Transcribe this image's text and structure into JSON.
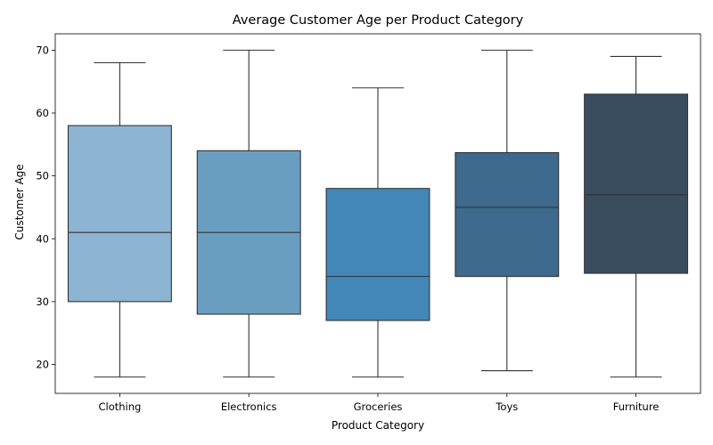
{
  "chart_data": {
    "type": "box",
    "title": "Average Customer Age per Product Category",
    "xlabel": "Product Category",
    "ylabel": "Customer Age",
    "ylim": [
      15.4,
      72.6
    ],
    "yticks": [
      20,
      30,
      40,
      50,
      60,
      70
    ],
    "grid": false,
    "categories": [
      "Clothing",
      "Electronics",
      "Groceries",
      "Toys",
      "Furniture"
    ],
    "boxes": [
      {
        "category": "Clothing",
        "min": 18,
        "q1": 30,
        "median": 41,
        "q3": 58,
        "max": 68,
        "color": "#8db4d2"
      },
      {
        "category": "Electronics",
        "min": 18,
        "q1": 28,
        "median": 41,
        "q3": 54,
        "max": 70,
        "color": "#6a9ec0"
      },
      {
        "category": "Groceries",
        "min": 18,
        "q1": 27,
        "median": 34,
        "q3": 48,
        "max": 64,
        "color": "#4287b8"
      },
      {
        "category": "Toys",
        "min": 19,
        "q1": 34,
        "median": 45,
        "q3": 53.7,
        "max": 70,
        "color": "#3d6a8d"
      },
      {
        "category": "Furniture",
        "min": 18,
        "q1": 34.5,
        "median": 47,
        "q3": 63,
        "max": 69,
        "color": "#3a4d5f"
      }
    ]
  }
}
